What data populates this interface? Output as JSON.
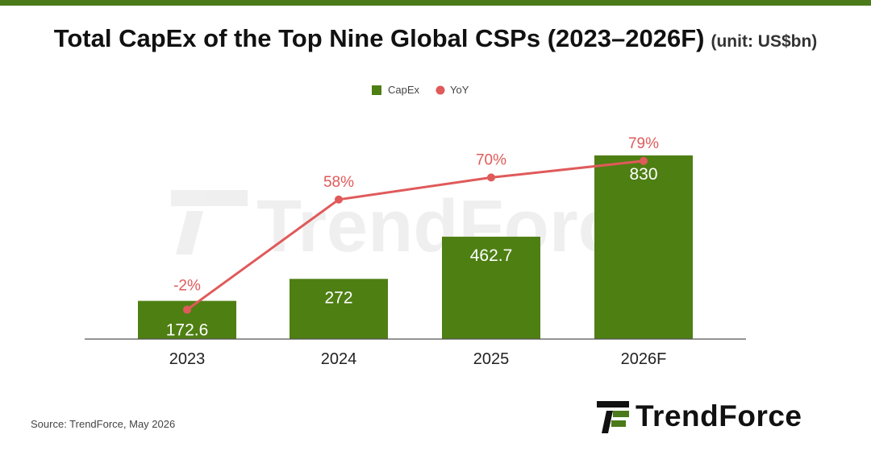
{
  "title": "Total CapEx of the Top Nine Global CSPs (2023–2026F)",
  "unit": "(unit: US$bn)",
  "source": "Source: TrendForce, May 2026",
  "brand": "TrendForce",
  "colors": {
    "bar": "#4e7f13",
    "line": "#e05a5a",
    "accent": "#4a7a1a"
  },
  "chart_data": {
    "type": "bar",
    "categories": [
      "2023",
      "2024",
      "2025",
      "2026F"
    ],
    "series": [
      {
        "name": "CapEx",
        "type": "bar",
        "values": [
          172.6,
          272,
          462.7,
          830
        ],
        "labels": [
          "172.6",
          "272",
          "462.7",
          "830"
        ]
      },
      {
        "name": "YoY",
        "type": "line",
        "values": [
          -2,
          58,
          70,
          79
        ],
        "labels": [
          "-2%",
          "58%",
          "70%",
          "79%"
        ]
      }
    ],
    "title": "Total CapEx of the Top Nine Global CSPs (2023–2026F)",
    "ylabel": "",
    "xlabel": "",
    "legend": "top-center",
    "grid": false
  }
}
